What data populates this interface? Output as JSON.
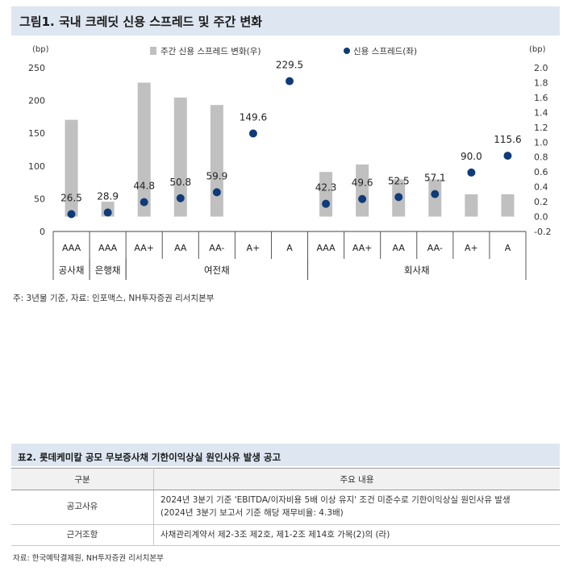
{
  "figure": {
    "title": "그림1. 국내 크레딧 신용 스프레드 및 주간 변화",
    "note": "주: 3년물 기준, 자료: 인포맥스, NH투자증권 리서치본부"
  },
  "chart_data": {
    "type": "bar+scatter",
    "left_axis_label": "(bp)",
    "right_axis_label": "(bp)",
    "left_ticks": [
      "250",
      "200",
      "150",
      "100",
      "50",
      "0"
    ],
    "right_ticks": [
      "2.0",
      "1.8",
      "1.6",
      "1.4",
      "1.2",
      "1.0",
      "0.8",
      "0.6",
      "0.4",
      "0.2",
      "0.0",
      "-0.2"
    ],
    "ylim_left": [
      0,
      250
    ],
    "ylim_right": [
      -0.2,
      2.0
    ],
    "legend": [
      "주간 신용 스프레드 변화(우)",
      "신용 스프레드(좌)"
    ],
    "categories": [
      "AAA",
      "AAA",
      "AA+",
      "AA",
      "AA-",
      "A+",
      "A",
      "AAA",
      "AA+",
      "AA",
      "AA-",
      "A+",
      "A"
    ],
    "groups": [
      {
        "label": "공사채",
        "span": [
          0,
          0
        ]
      },
      {
        "label": "은행채",
        "span": [
          1,
          1
        ]
      },
      {
        "label": "여전채",
        "span": [
          2,
          6
        ]
      },
      {
        "label": "회사채",
        "span": [
          7,
          12
        ]
      }
    ],
    "series": [
      {
        "name": "주간 신용 스프레드 변화(우)",
        "type": "bar",
        "axis": "right",
        "color": "#c0c0c0",
        "values": [
          1.3,
          0.2,
          1.8,
          1.6,
          1.5,
          0.0,
          0.0,
          0.6,
          0.7,
          0.5,
          0.5,
          0.3,
          0.3
        ]
      },
      {
        "name": "신용 스프레드(좌)",
        "type": "scatter",
        "axis": "left",
        "color": "#0f3b78",
        "values": [
          26.5,
          28.9,
          44.8,
          50.8,
          59.9,
          149.6,
          229.5,
          42.3,
          49.6,
          52.5,
          57.1,
          90.0,
          115.6
        ],
        "labels": [
          "26.5",
          "28.9",
          "44.8",
          "50.8",
          "59.9",
          "149.6",
          "229.5",
          "42.3",
          "49.6",
          "52.5",
          "57.1",
          "90.0",
          "115.6"
        ]
      }
    ]
  },
  "table": {
    "title": "표2. 롯데케미칼 공모 무보증사채 기한이익상실 원인사유 발생 공고",
    "headers": [
      "구분",
      "주요 내용"
    ],
    "rows": [
      {
        "label": "공고사유",
        "line1": "2024년 3분기 기준 'EBITDA/이자비용 5배 이상 유지' 조건 미준수로 기한이익상실 원인사유 발생",
        "line2": "(2024년 3분기 보고서 기준 해당 재무비율: 4.3배)"
      },
      {
        "label": "근거조항",
        "line1": "사채관리계약서 제2-3조 제2호, 제1-2조 제14호 가목(2)의 (라)",
        "line2": ""
      }
    ],
    "source": "자료: 한국예탁결제원, NH투자증권 리서치본부"
  }
}
